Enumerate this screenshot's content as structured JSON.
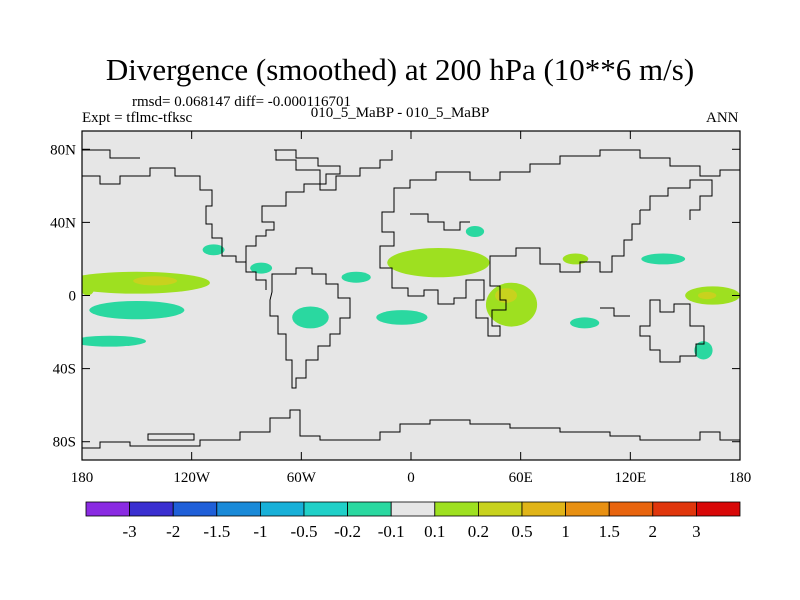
{
  "chart_data": {
    "type": "heatmap",
    "title": "Divergence (smoothed) at 200 hPa (10**6 m/s)",
    "stats": "rmsd= 0.068147 diff= -0.000116701",
    "experiment": "Expt = tflmc-tfksc",
    "comparison": "010_5_MaBP - 010_5_MaBP",
    "period": "ANN",
    "x_axis": {
      "range": [
        -180,
        180
      ],
      "ticks": [
        -180,
        -120,
        -60,
        0,
        60,
        120,
        180
      ],
      "tick_labels": [
        "180",
        "120W",
        "60W",
        "0",
        "60E",
        "120E",
        "180"
      ]
    },
    "y_axis": {
      "range": [
        -90,
        90
      ],
      "ticks": [
        80,
        40,
        0,
        -40,
        -80
      ],
      "tick_labels": [
        "80N",
        "40N",
        "0",
        "40S",
        "80S"
      ]
    },
    "colorbar": {
      "labels": [
        "-3",
        "-2",
        "-1.5",
        "-1",
        "-0.5",
        "-0.2",
        "-0.1",
        "0.1",
        "0.2",
        "0.5",
        "1",
        "1.5",
        "2",
        "3"
      ],
      "colors": [
        "#8a2be2",
        "#3a2fd0",
        "#1f5fd8",
        "#1a8ad8",
        "#18b0d8",
        "#20d0c8",
        "#2ad8a0",
        "#e6e6e6",
        "#9ee020",
        "#c8d21e",
        "#e0b418",
        "#e89012",
        "#e8640e",
        "#e0360c",
        "#d80808"
      ]
    },
    "regions": [
      {
        "id": "pac-north-itcz",
        "band": "0.1 to 0.2",
        "lon": -150,
        "lat": 7,
        "rx": 40,
        "ry": 6
      },
      {
        "id": "pac-north-itcz-core",
        "band": "0.2 to 0.5",
        "lon": -140,
        "lat": 8,
        "rx": 12,
        "ry": 2.5
      },
      {
        "id": "pac-south-band",
        "band": "-0.2 to -0.1",
        "lon": -150,
        "lat": -8,
        "rx": 26,
        "ry": 5
      },
      {
        "id": "pac-west-edge",
        "band": "0.1 to 0.2",
        "lon": -177,
        "lat": 5,
        "rx": 4,
        "ry": 5
      },
      {
        "id": "indian-north",
        "band": "0.1 to 0.2",
        "lon": 15,
        "lat": 18,
        "rx": 28,
        "ry": 8
      },
      {
        "id": "africa-east",
        "band": "0.1 to 0.2",
        "lon": 55,
        "lat": -5,
        "rx": 14,
        "ry": 12
      },
      {
        "id": "africa-east-core",
        "band": "0.2 to 0.5",
        "lon": 52,
        "lat": 0,
        "rx": 6,
        "ry": 4
      },
      {
        "id": "atlantic-south",
        "band": "-0.2 to -0.1",
        "lon": -5,
        "lat": -12,
        "rx": 14,
        "ry": 4
      },
      {
        "id": "amazon",
        "band": "-0.2 to -0.1",
        "lon": -55,
        "lat": -12,
        "rx": 10,
        "ry": 6
      },
      {
        "id": "west-pacific",
        "band": "0.1 to 0.2",
        "lon": 165,
        "lat": 0,
        "rx": 15,
        "ry": 5
      },
      {
        "id": "west-pacific-core",
        "band": "0.2 to 0.5",
        "lon": 162,
        "lat": 0,
        "rx": 5,
        "ry": 2
      },
      {
        "id": "east-asia",
        "band": "-0.2 to -0.1",
        "lon": 138,
        "lat": 20,
        "rx": 12,
        "ry": 3
      },
      {
        "id": "australia-east",
        "band": "-0.2 to -0.1",
        "lon": 160,
        "lat": -30,
        "rx": 5,
        "ry": 5
      },
      {
        "id": "north-atlantic",
        "band": "-0.2 to -0.1",
        "lon": -108,
        "lat": 25,
        "rx": 6,
        "ry": 3
      },
      {
        "id": "mexico",
        "band": "-0.2 to -0.1",
        "lon": -82,
        "lat": 15,
        "rx": 6,
        "ry": 3
      },
      {
        "id": "s-pacific-west",
        "band": "-0.2 to -0.1",
        "lon": -165,
        "lat": -25,
        "rx": 20,
        "ry": 3
      },
      {
        "id": "indian-south",
        "band": "-0.2 to -0.1",
        "lon": 95,
        "lat": -15,
        "rx": 8,
        "ry": 3
      },
      {
        "id": "atlantic-north",
        "band": "-0.2 to -0.1",
        "lon": -30,
        "lat": 10,
        "rx": 8,
        "ry": 3
      },
      {
        "id": "mediterranean",
        "band": "-0.2 to -0.1",
        "lon": 35,
        "lat": 35,
        "rx": 5,
        "ry": 3
      },
      {
        "id": "india",
        "band": "0.1 to 0.2",
        "lon": 90,
        "lat": 20,
        "rx": 7,
        "ry": 3
      }
    ]
  }
}
